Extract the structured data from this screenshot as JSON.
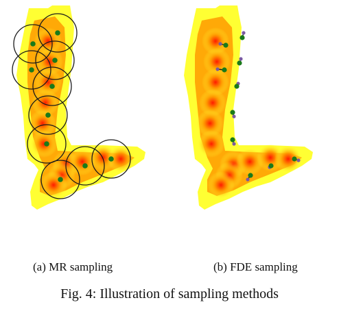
{
  "panels": [
    {
      "id": "a",
      "caption": "(a) MR sampling"
    },
    {
      "id": "b",
      "caption": "(b) FDE sampling"
    }
  ],
  "figure_caption": "Fig. 4: Illustration of sampling methods",
  "colors": {
    "heat_low": "#ffff33",
    "heat_mid": "#ff9a00",
    "heat_high": "#ff1a00",
    "sample_point": "#1a7a1a",
    "circle_stroke": "#1a1a1a",
    "fde_endpoint": "#7a5aa0"
  }
}
